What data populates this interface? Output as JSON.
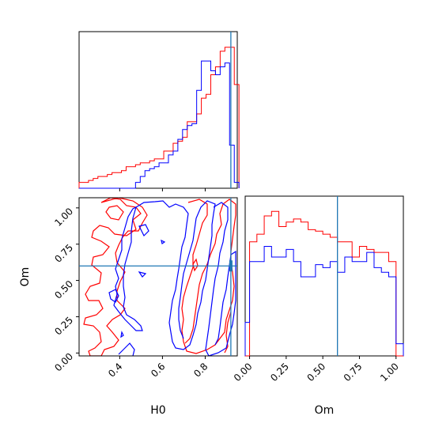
{
  "figure": {
    "type": "corner-plot",
    "parameters": [
      "H0",
      "Om"
    ]
  },
  "colors": {
    "samples_a": "#ff0000",
    "samples_b": "#0000ff",
    "truth": "#1f77b4"
  },
  "chart_data": [
    {
      "panel": "H0 marginal",
      "type": "histogram",
      "xlim": [
        0.21,
        0.95
      ],
      "xticks": [
        0.4,
        0.6,
        0.8
      ],
      "yticks": [],
      "truth_x": 0.92,
      "bin_edges": [
        0.21,
        0.232,
        0.254,
        0.276,
        0.298,
        0.32,
        0.342,
        0.364,
        0.386,
        0.408,
        0.43,
        0.452,
        0.474,
        0.496,
        0.518,
        0.54,
        0.562,
        0.584,
        0.606,
        0.628,
        0.65,
        0.672,
        0.694,
        0.716,
        0.738,
        0.76,
        0.782,
        0.804,
        0.826,
        0.848,
        0.87,
        0.892,
        0.914,
        0.936,
        0.958
      ],
      "series": [
        {
          "color": "red",
          "values": [
            3,
            3,
            4,
            5,
            6,
            6,
            7,
            8,
            8,
            9,
            11,
            11,
            12,
            13,
            13,
            14,
            15,
            15,
            19,
            19,
            23,
            24,
            26,
            34,
            34,
            38,
            46,
            48,
            58,
            62,
            70,
            72,
            72,
            53
          ]
        },
        {
          "color": "blue",
          "values": [
            0,
            0,
            0,
            0,
            0,
            0,
            0,
            0,
            0,
            0,
            0,
            0,
            3,
            6,
            9,
            10,
            11,
            13,
            13,
            17,
            19,
            25,
            30,
            32,
            33,
            50,
            65,
            65,
            60,
            58,
            62,
            64,
            22,
            3
          ]
        }
      ]
    },
    {
      "panel": "Om marginal",
      "type": "histogram",
      "xlim": [
        -0.03,
        1.05
      ],
      "xticks": [
        "0.00",
        "0.25",
        "0.50",
        "0.75",
        "1.00"
      ],
      "yticks": [],
      "truth_x": 0.6,
      "bin_edges": [
        -0.03,
        0.0,
        0.05,
        0.1,
        0.15,
        0.2,
        0.25,
        0.3,
        0.35,
        0.4,
        0.45,
        0.5,
        0.55,
        0.6,
        0.65,
        0.7,
        0.75,
        0.8,
        0.85,
        0.9,
        0.95,
        1.0,
        1.05
      ],
      "series": [
        {
          "color": "red",
          "values": [
            0,
            75,
            80,
            92,
            95,
            85,
            88,
            90,
            88,
            83,
            82,
            80,
            78,
            75,
            75,
            65,
            72,
            70,
            68,
            68,
            62,
            0
          ]
        },
        {
          "color": "blue",
          "values": [
            22,
            62,
            62,
            72,
            65,
            65,
            70,
            62,
            52,
            52,
            60,
            58,
            62,
            55,
            65,
            62,
            62,
            68,
            58,
            55,
            52,
            8
          ]
        }
      ]
    },
    {
      "panel": "Om vs H0 joint",
      "type": "contour",
      "xlim": [
        0.21,
        0.95
      ],
      "ylim": [
        -0.02,
        1.07
      ],
      "xticks": [
        "0.4",
        "0.6",
        "0.8"
      ],
      "yticks": [
        "0.00",
        "0.25",
        "0.50",
        "0.75",
        "1.00"
      ],
      "xlabel": "H0",
      "ylabel": "Om",
      "truth": [
        0.92,
        0.6
      ]
    }
  ],
  "labels": {
    "h0": "H0",
    "om": "Om"
  }
}
